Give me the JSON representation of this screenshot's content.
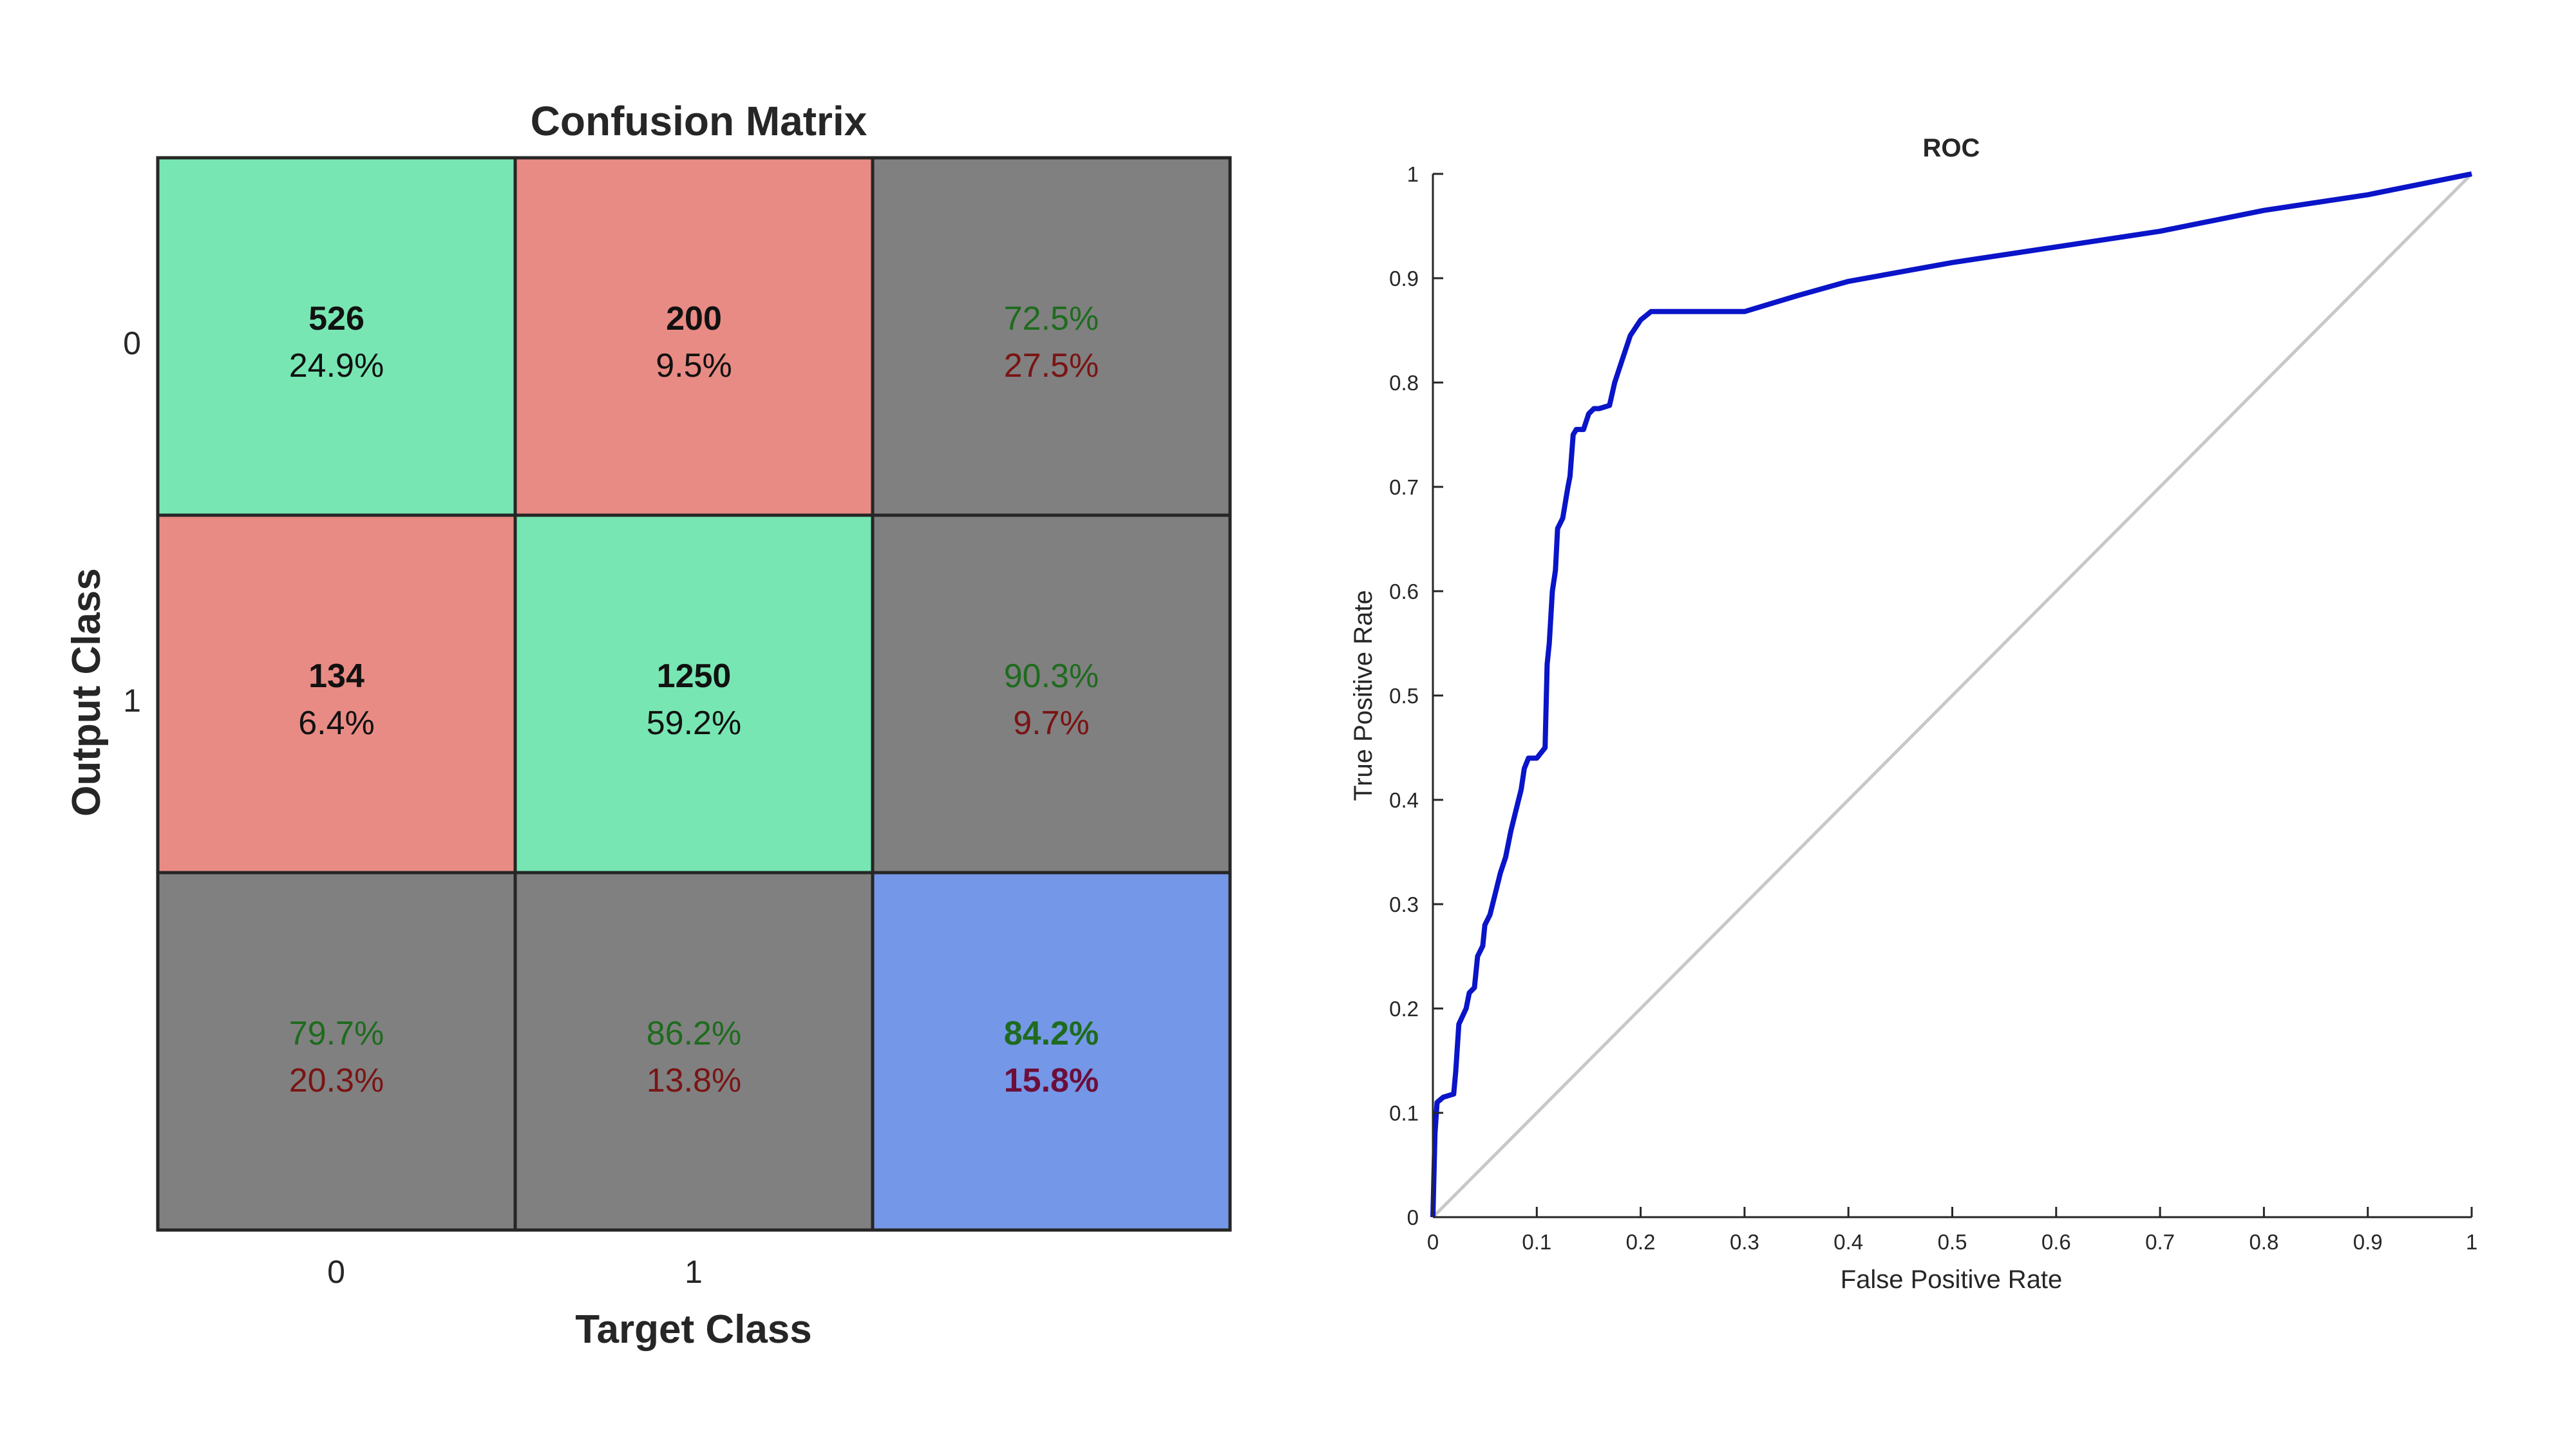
{
  "chart_data": [
    {
      "type": "heatmap",
      "title": "Confusion Matrix",
      "xlabel": "Target Class",
      "ylabel": "Output Class",
      "x_tick_labels": [
        "0",
        "1"
      ],
      "y_tick_labels": [
        "0",
        "1"
      ],
      "cells": [
        [
          {
            "count": "526",
            "percent": "24.9%"
          },
          {
            "count": "200",
            "percent": "9.5%"
          }
        ],
        [
          {
            "count": "134",
            "percent": "6.4%"
          },
          {
            "count": "1250",
            "percent": "59.2%"
          }
        ]
      ],
      "row_summary": [
        {
          "correct": "72.5%",
          "incorrect": "27.5%"
        },
        {
          "correct": "90.3%",
          "incorrect": "9.7%"
        }
      ],
      "column_summary": [
        {
          "correct": "79.7%",
          "incorrect": "20.3%"
        },
        {
          "correct": "86.2%",
          "incorrect": "13.8%"
        }
      ],
      "overall": {
        "correct": "84.2%",
        "incorrect": "15.8%"
      },
      "colors": {
        "correct_cell": "#77e6b3",
        "incorrect_cell": "#e88b84",
        "summary_cell": "#808080",
        "overall_cell": "#7597e8"
      }
    },
    {
      "type": "line",
      "title": "ROC",
      "xlabel": "False Positive Rate",
      "ylabel": "True Positive Rate",
      "xlim": [
        0,
        1
      ],
      "ylim": [
        0,
        1
      ],
      "x_ticks": [
        "0",
        "0.1",
        "0.2",
        "0.3",
        "0.4",
        "0.5",
        "0.6",
        "0.7",
        "0.8",
        "0.9",
        "1"
      ],
      "y_ticks": [
        "0",
        "0.1",
        "0.2",
        "0.3",
        "0.4",
        "0.5",
        "0.6",
        "0.7",
        "0.8",
        "0.9",
        "1"
      ],
      "grid": false,
      "series": [
        {
          "color": "#0a14c8",
          "x": [
            0,
            0.002,
            0.004,
            0.01,
            0.02,
            0.022,
            0.025,
            0.032,
            0.035,
            0.04,
            0.043,
            0.048,
            0.05,
            0.055,
            0.06,
            0.065,
            0.07,
            0.075,
            0.08,
            0.085,
            0.088,
            0.09,
            0.092,
            0.1,
            0.108,
            0.11,
            0.112,
            0.115,
            0.118,
            0.12,
            0.125,
            0.13,
            0.132,
            0.135,
            0.138,
            0.14,
            0.145,
            0.15,
            0.155,
            0.16,
            0.17,
            0.175,
            0.18,
            0.185,
            0.19,
            0.2,
            0.21,
            0.25,
            0.3,
            0.35,
            0.4,
            0.5,
            0.6,
            0.7,
            0.8,
            0.9,
            1.0
          ],
          "y": [
            0,
            0.08,
            0.11,
            0.115,
            0.118,
            0.14,
            0.185,
            0.2,
            0.215,
            0.22,
            0.25,
            0.26,
            0.28,
            0.29,
            0.31,
            0.33,
            0.345,
            0.37,
            0.39,
            0.41,
            0.43,
            0.435,
            0.44,
            0.44,
            0.45,
            0.53,
            0.55,
            0.6,
            0.62,
            0.66,
            0.67,
            0.7,
            0.71,
            0.75,
            0.755,
            0.755,
            0.755,
            0.77,
            0.775,
            0.775,
            0.778,
            0.8,
            0.815,
            0.83,
            0.845,
            0.86,
            0.868,
            0.868,
            0.868,
            0.883,
            0.897,
            0.915,
            0.93,
            0.945,
            0.965,
            0.98,
            1.0
          ]
        },
        {
          "color": "#c8c8c8",
          "x": [
            0,
            1
          ],
          "y": [
            0,
            1
          ]
        }
      ]
    }
  ]
}
